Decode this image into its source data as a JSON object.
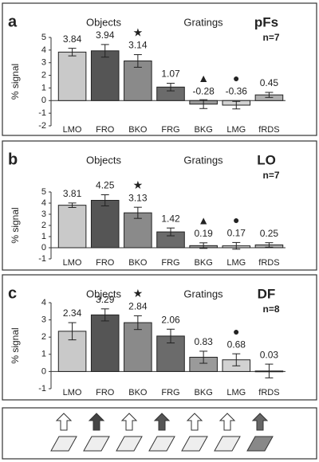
{
  "chart_data": [
    {
      "type": "bar",
      "panel": "a",
      "region": "pFs",
      "n": "n=7",
      "ylabel": "% signal",
      "groups": [
        "Objects",
        "Gratings"
      ],
      "categories": [
        "LMO",
        "FRO",
        "BKO",
        "FRG",
        "BKG",
        "LMG",
        "fRDS"
      ],
      "values": [
        3.84,
        3.94,
        3.14,
        1.07,
        -0.28,
        -0.36,
        0.45
      ],
      "errors": [
        0.3,
        0.5,
        0.5,
        0.3,
        0.35,
        0.3,
        0.2
      ],
      "markers": [
        null,
        null,
        "★",
        null,
        "▲",
        "●",
        null
      ],
      "colors": [
        "#c9c9c9",
        "#555555",
        "#8a8a8a",
        "#6b6b6b",
        "#9a9a9a",
        "#d2d2d2",
        "#b0b0b0"
      ],
      "ylim": [
        -2,
        5
      ],
      "yticks": [
        -2,
        -1,
        0,
        1,
        2,
        3,
        4,
        5
      ]
    },
    {
      "type": "bar",
      "panel": "b",
      "region": "LO",
      "n": "n=7",
      "ylabel": "% signal",
      "groups": [
        "Objects",
        "Gratings"
      ],
      "categories": [
        "LMO",
        "FRO",
        "BKO",
        "FRG",
        "BKG",
        "LMG",
        "fRDS"
      ],
      "values": [
        3.81,
        4.25,
        3.13,
        1.42,
        0.19,
        0.17,
        0.25
      ],
      "errors": [
        0.2,
        0.5,
        0.5,
        0.35,
        0.25,
        0.3,
        0.2
      ],
      "markers": [
        null,
        null,
        "★",
        null,
        "▲",
        "●",
        null
      ],
      "colors": [
        "#c9c9c9",
        "#555555",
        "#8a8a8a",
        "#6b6b6b",
        "#9a9a9a",
        "#d2d2d2",
        "#b0b0b0"
      ],
      "ylim": [
        -1,
        5
      ],
      "yticks": [
        -1,
        0,
        1,
        2,
        3,
        4,
        5
      ]
    },
    {
      "type": "bar",
      "panel": "c",
      "region": "DF",
      "n": "n=8",
      "ylabel": "% signal",
      "groups": [
        "Objects",
        "Gratings"
      ],
      "categories": [
        "LMO",
        "FRO",
        "BKO",
        "FRG",
        "BKG",
        "LMG",
        "fRDS"
      ],
      "values": [
        2.34,
        3.29,
        2.84,
        2.06,
        0.83,
        0.68,
        0.03
      ],
      "errors": [
        0.5,
        0.35,
        0.4,
        0.4,
        0.35,
        0.35,
        0.4
      ],
      "markers": [
        null,
        null,
        "★",
        null,
        null,
        "●",
        null
      ],
      "colors": [
        "#c9c9c9",
        "#555555",
        "#8a8a8a",
        "#6b6b6b",
        "#9a9a9a",
        "#d2d2d2",
        "#b0b0b0"
      ],
      "ylim": [
        -1,
        4
      ],
      "yticks": [
        -1,
        0,
        1,
        2,
        3,
        4
      ]
    }
  ]
}
